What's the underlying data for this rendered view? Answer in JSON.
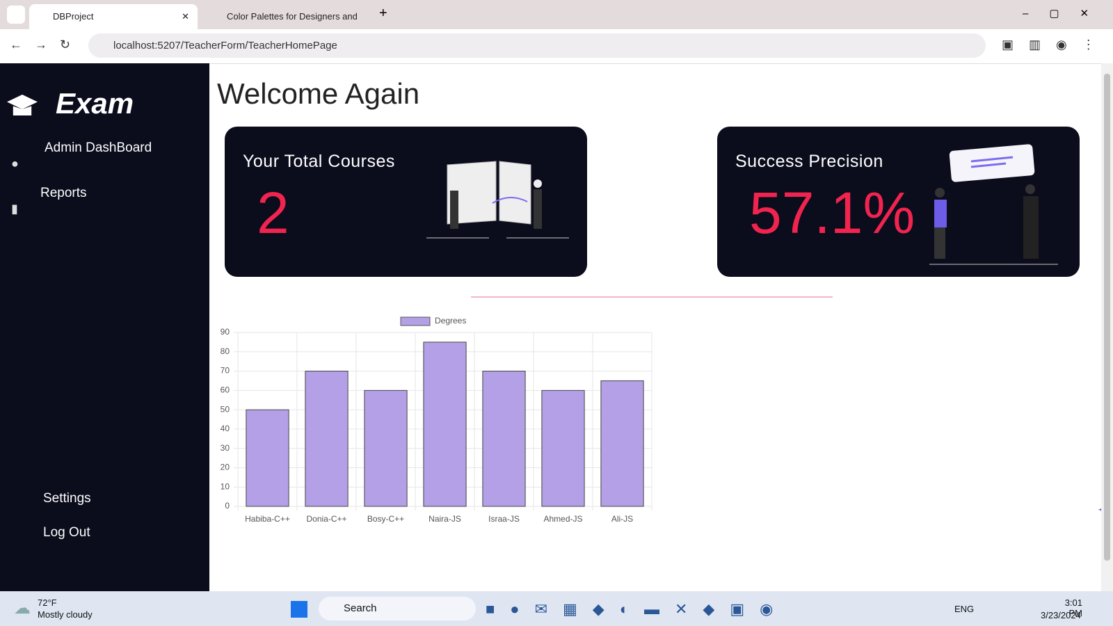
{
  "browser": {
    "tabs": [
      "DBProject",
      "Color Palettes for Designers and"
    ],
    "url": "localhost:5207/TeacherForm/TeacherHomePage"
  },
  "sidebar": {
    "brand": "Exam",
    "items": [
      "Admin DashBoard",
      "Reports"
    ],
    "bottom_items": [
      "Settings",
      "Log Out"
    ]
  },
  "header": {
    "title": "Welcome Again"
  },
  "cards": [
    {
      "title": "Your Total Courses",
      "value": "2"
    },
    {
      "title": "Success Precision",
      "value": "57.1%"
    }
  ],
  "chart_data": {
    "type": "bar",
    "categories": [
      "Habiba-C++",
      "Donia-C++",
      "Bosy-C++",
      "Naira-JS",
      "Israa-JS",
      "Ahmed-JS",
      "Ali-JS"
    ],
    "series": [
      {
        "name": "Degrees",
        "color": "#b4a0e6",
        "values": [
          50,
          70,
          60,
          85,
          70,
          60,
          65
        ]
      }
    ],
    "ylim": [
      0,
      90
    ],
    "yticks": [
      0,
      10,
      20,
      30,
      40,
      50,
      60,
      70,
      80,
      90
    ],
    "grid": true,
    "legend": "top"
  },
  "taskbar": {
    "weather_temp": "72°F",
    "weather_text": "Mostly cloudy",
    "search": "Search",
    "language": "ENG",
    "time": "3:01 PM",
    "date": "3/23/2024"
  }
}
